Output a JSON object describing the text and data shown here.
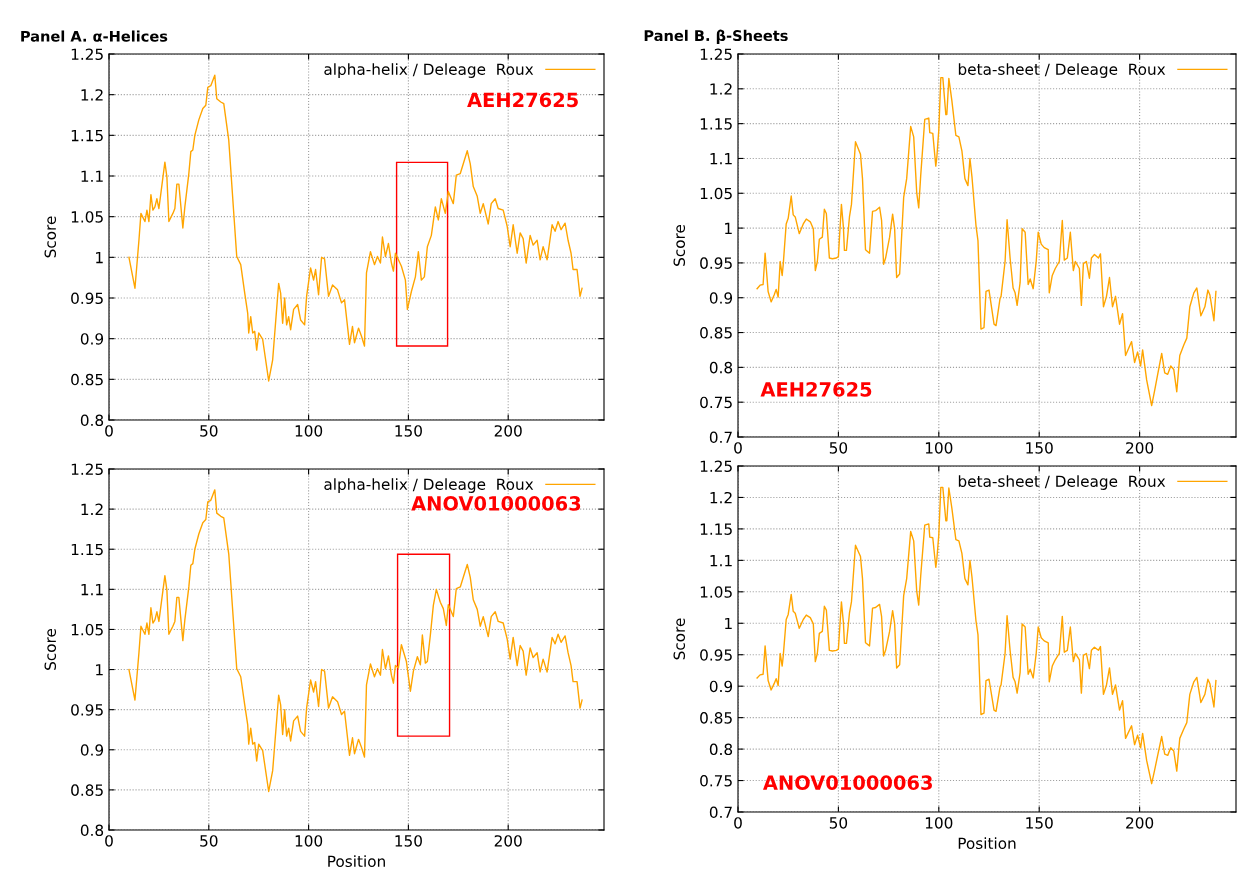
{
  "chart_data": [
    {
      "type": "line",
      "title": "Panel A. α-Helices",
      "ylabel": "Score",
      "xlim": [
        0,
        248
      ],
      "ylim": [
        0.8,
        1.25
      ],
      "xticks": [
        0,
        50,
        100,
        150,
        200
      ],
      "yticks": [
        0.8,
        0.85,
        0.9,
        0.95,
        1,
        1.05,
        1.1,
        1.15,
        1.2,
        1.25
      ],
      "grid": true,
      "legend": "top right",
      "annotations": [
        "AEH27625"
      ],
      "x": [
        10,
        13,
        15,
        16,
        18,
        19,
        20,
        21,
        22,
        23,
        24,
        25,
        26,
        28,
        29,
        30,
        32,
        33,
        34,
        35,
        37,
        38,
        40,
        41,
        42,
        43,
        45,
        47,
        48.5,
        49.5,
        51,
        53,
        54,
        56,
        57.5,
        60,
        64,
        66,
        68,
        69.5,
        70,
        71,
        72,
        73,
        74,
        75,
        77,
        80,
        82,
        85,
        86,
        87,
        88,
        89,
        90,
        91,
        92.5,
        94.5,
        96,
        98,
        99,
        101,
        102.5,
        103.5,
        105,
        106.5,
        108,
        110,
        112,
        114.5,
        116.5,
        118,
        120.5,
        122,
        123,
        125,
        126.5,
        128,
        129,
        131,
        133,
        134.5,
        136,
        137,
        138.5,
        140,
        141.5,
        142.5,
        143.5,
        146.5,
        148.5,
        149.5,
        151.5,
        153.5,
        155,
        156.5,
        158,
        159.5,
        161.5,
        163.5,
        165,
        166.5,
        168.5,
        170,
        172.5,
        174,
        176,
        177.5,
        179.5,
        181,
        182.5,
        184.5,
        186,
        187.5,
        190,
        191.5,
        193.5,
        195,
        197.5,
        199.5,
        201,
        202.5,
        204.5,
        206,
        207.5,
        209,
        211,
        212.5,
        214.5,
        216,
        217.5,
        219.5,
        222,
        223.5,
        225,
        226.5,
        228.5,
        230,
        231.5,
        232.5,
        234.5,
        236,
        237
      ],
      "series": [
        {
          "name": "alpha-helix / Deleage  Roux",
          "color": "#ffa500",
          "values": [
            1.0,
            0.962,
            1.021,
            1.054,
            1.044,
            1.058,
            1.044,
            1.077,
            1.058,
            1.062,
            1.072,
            1.06,
            1.079,
            1.117,
            1.099,
            1.044,
            1.054,
            1.06,
            1.09,
            1.09,
            1.036,
            1.062,
            1.103,
            1.13,
            1.132,
            1.15,
            1.169,
            1.183,
            1.187,
            1.209,
            1.211,
            1.224,
            1.195,
            1.191,
            1.189,
            1.144,
            1.001,
            0.991,
            0.956,
            0.931,
            0.907,
            0.927,
            0.907,
            0.909,
            0.886,
            0.907,
            0.899,
            0.848,
            0.874,
            0.968,
            0.956,
            0.919,
            0.95,
            0.917,
            0.927,
            0.911,
            0.936,
            0.942,
            0.923,
            0.917,
            0.952,
            0.987,
            0.972,
            0.985,
            0.954,
            1.0,
            0.998,
            0.952,
            0.966,
            0.96,
            0.944,
            0.948,
            0.893,
            0.915,
            0.895,
            0.913,
            0.903,
            0.891,
            0.981,
            1.007,
            0.991,
            1.001,
            0.993,
            1.025,
            1.001,
            1.017,
            0.993,
            0.983,
            1.005,
            0.989,
            0.972,
            0.936,
            0.958,
            0.976,
            1.007,
            0.972,
            0.976,
            1.013,
            1.027,
            1.062,
            1.046,
            1.072,
            1.054,
            1.081,
            1.066,
            1.101,
            1.103,
            1.115,
            1.131,
            1.115,
            1.087,
            1.075,
            1.054,
            1.066,
            1.041,
            1.066,
            1.072,
            1.06,
            1.058,
            1.038,
            1.013,
            1.04,
            1.005,
            1.03,
            1.023,
            0.993,
            1.027,
            1.015,
            1.021,
            0.997,
            1.013,
            0.997,
            1.04,
            1.032,
            1.044,
            1.034,
            1.042,
            1.021,
            1.005,
            0.985,
            0.985,
            0.952,
            0.962
          ]
        }
      ]
    },
    {
      "type": "line",
      "xlabel": "Position",
      "ylabel": "Score",
      "xlim": [
        0,
        248
      ],
      "ylim": [
        0.8,
        1.25
      ],
      "xticks": [
        0,
        50,
        100,
        150,
        200
      ],
      "yticks": [
        0.8,
        0.85,
        0.9,
        0.95,
        1,
        1.05,
        1.1,
        1.15,
        1.2,
        1.25
      ],
      "grid": true,
      "legend": "top right",
      "annotations": [
        "ANOV01000063"
      ],
      "x": [
        10,
        13,
        15,
        16,
        18,
        19,
        20,
        21,
        22,
        23,
        24,
        25,
        26,
        28,
        29,
        30,
        32,
        33,
        34,
        35,
        37,
        38,
        40,
        41,
        42,
        43,
        45,
        47,
        48.5,
        49.5,
        51,
        53,
        54,
        56,
        57.5,
        60,
        64,
        66,
        68,
        69.5,
        70,
        71,
        72,
        73,
        74,
        75,
        77,
        80,
        82,
        85,
        86,
        87,
        88,
        89,
        90,
        91,
        92.5,
        94.5,
        96,
        98,
        99,
        101,
        102.5,
        103.5,
        105,
        106.5,
        108,
        110,
        112,
        114.5,
        116.5,
        118,
        120.5,
        122,
        123,
        125,
        126.5,
        128,
        129,
        131,
        133,
        134.5,
        136,
        137,
        138.5,
        140,
        141.5,
        142.5,
        143.5,
        145,
        146.5,
        149,
        151,
        152.5,
        154.5,
        156,
        157,
        158.5,
        159.5,
        161,
        162.5,
        164,
        166,
        167.5,
        169,
        170,
        172.5,
        174,
        176,
        177.5,
        179.5,
        181,
        182.5,
        184.5,
        186,
        187.5,
        190,
        191.5,
        193.5,
        195,
        197.5,
        199.5,
        201,
        202.5,
        204.5,
        206,
        207.5,
        209,
        211,
        212.5,
        214.5,
        216,
        217.5,
        219.5,
        222,
        223.5,
        225,
        226.5,
        228.5,
        230,
        231.5,
        232.5,
        234.5,
        236,
        237
      ],
      "series": [
        {
          "name": "alpha-helix / Deleage  Roux",
          "color": "#ffa500",
          "values": [
            1.0,
            0.962,
            1.021,
            1.054,
            1.044,
            1.058,
            1.044,
            1.077,
            1.058,
            1.062,
            1.072,
            1.06,
            1.079,
            1.117,
            1.099,
            1.044,
            1.054,
            1.06,
            1.09,
            1.09,
            1.036,
            1.062,
            1.103,
            1.13,
            1.132,
            1.15,
            1.169,
            1.183,
            1.187,
            1.209,
            1.211,
            1.224,
            1.195,
            1.191,
            1.189,
            1.144,
            1.001,
            0.991,
            0.956,
            0.931,
            0.907,
            0.927,
            0.907,
            0.909,
            0.886,
            0.907,
            0.899,
            0.848,
            0.874,
            0.968,
            0.956,
            0.919,
            0.95,
            0.917,
            0.927,
            0.911,
            0.936,
            0.942,
            0.923,
            0.917,
            0.952,
            0.987,
            0.972,
            0.985,
            0.954,
            1.0,
            0.998,
            0.952,
            0.966,
            0.96,
            0.944,
            0.948,
            0.893,
            0.915,
            0.895,
            0.913,
            0.903,
            0.891,
            0.981,
            1.007,
            0.991,
            1.001,
            0.993,
            1.025,
            1.001,
            1.017,
            0.993,
            0.983,
            1.005,
            1.002,
            1.031,
            1.01,
            0.973,
            0.998,
            1.016,
            1.006,
            1.043,
            1.008,
            1.01,
            1.043,
            1.08,
            1.1,
            1.084,
            1.076,
            1.055,
            1.081,
            1.066,
            1.101,
            1.103,
            1.115,
            1.131,
            1.115,
            1.087,
            1.075,
            1.054,
            1.066,
            1.041,
            1.066,
            1.072,
            1.06,
            1.058,
            1.038,
            1.013,
            1.04,
            1.005,
            1.03,
            1.023,
            0.993,
            1.027,
            1.015,
            1.021,
            0.997,
            1.013,
            0.997,
            1.04,
            1.032,
            1.044,
            1.034,
            1.042,
            1.021,
            1.005,
            0.985,
            0.985,
            0.952,
            0.962
          ]
        }
      ]
    },
    {
      "type": "line",
      "title": "Panel B. β-Sheets",
      "ylabel": "Score",
      "xlim": [
        0,
        248
      ],
      "ylim": [
        0.7,
        1.25
      ],
      "xticks": [
        0,
        50,
        100,
        150,
        200
      ],
      "yticks": [
        0.7,
        0.75,
        0.8,
        0.85,
        0.9,
        0.95,
        1,
        1.05,
        1.1,
        1.15,
        1.2,
        1.25
      ],
      "grid": true,
      "legend": "top right",
      "annotations": [
        "AEH27625"
      ],
      "x": [
        9.5,
        11,
        12.5,
        13.5,
        15,
        16.5,
        18,
        19,
        20,
        21,
        22,
        22.5,
        24,
        25,
        26.5,
        27.5,
        28.5,
        30.5,
        32.5,
        34,
        36,
        37.5,
        38.5,
        39.5,
        40.5,
        42,
        43,
        44,
        45.5,
        47,
        49,
        50,
        51.5,
        52.5,
        53,
        54,
        55.5,
        56.5,
        58.5,
        61,
        62,
        63.5,
        65.5,
        67,
        68.5,
        70.5,
        71.5,
        72.5,
        73.5,
        75.5,
        77,
        78,
        79,
        80.5,
        82.5,
        84,
        86,
        87.5,
        89,
        90,
        91,
        93,
        95,
        95.5,
        97,
        98.5,
        99,
        100,
        101,
        102,
        103.5,
        104,
        105,
        106.5,
        108.5,
        110,
        111.5,
        113,
        114.5,
        115.5,
        116.5,
        118.5,
        119.5,
        121,
        122.5,
        123.5,
        125,
        127.5,
        128.5,
        130.5,
        131,
        133,
        134,
        135.5,
        137,
        138,
        139,
        140.5,
        141.5,
        143,
        144.5,
        145.5,
        147,
        148.5,
        149.5,
        151,
        152.5,
        154.5,
        155,
        156.5,
        158,
        160,
        161.5,
        162.5,
        164,
        165.5,
        167,
        168,
        170,
        171,
        172,
        173.5,
        175,
        176,
        177.5,
        179.5,
        180.5,
        182,
        183.5,
        185,
        186.5,
        188,
        190,
        191.5,
        193,
        194.5,
        196,
        197.5,
        199,
        200.5,
        201.5,
        203.5,
        206,
        207.5,
        209,
        211,
        212.5,
        214,
        215.5,
        217,
        218.5,
        220,
        222,
        223.5,
        225,
        227,
        228.5,
        230.5,
        232.5,
        234,
        235,
        237,
        238
      ],
      "series": [
        {
          "name": "beta-sheet / Deleage  Roux",
          "color": "#ffa500",
          "values": [
            0.913,
            0.918,
            0.919,
            0.964,
            0.909,
            0.894,
            0.904,
            0.912,
            0.901,
            0.952,
            0.932,
            0.947,
            1.006,
            1.014,
            1.046,
            1.019,
            1.016,
            0.992,
            1.006,
            1.013,
            1.009,
            0.999,
            0.939,
            0.952,
            0.984,
            0.987,
            1.027,
            1.021,
            0.957,
            0.956,
            0.957,
            0.959,
            1.034,
            1.001,
            0.968,
            0.968,
            1.016,
            1.034,
            1.124,
            1.106,
            1.071,
            0.969,
            0.964,
            1.024,
            1.025,
            1.03,
            1.011,
            0.948,
            0.957,
            0.987,
            1.02,
            0.999,
            0.929,
            0.934,
            1.044,
            1.071,
            1.146,
            1.131,
            1.051,
            1.029,
            1.076,
            1.156,
            1.158,
            1.137,
            1.136,
            1.089,
            1.101,
            1.141,
            1.216,
            1.216,
            1.163,
            1.163,
            1.215,
            1.183,
            1.133,
            1.131,
            1.111,
            1.071,
            1.061,
            1.1,
            1.074,
            1.004,
            0.982,
            0.855,
            0.857,
            0.909,
            0.911,
            0.862,
            0.86,
            0.899,
            0.902,
            0.952,
            1.012,
            0.957,
            0.914,
            0.907,
            0.889,
            0.922,
            0.999,
            0.994,
            0.919,
            0.927,
            0.913,
            0.952,
            0.994,
            0.977,
            0.972,
            0.969,
            0.907,
            0.932,
            0.942,
            0.952,
            1.011,
            0.954,
            0.957,
            0.994,
            0.939,
            0.952,
            0.942,
            0.889,
            0.949,
            0.952,
            0.928,
            0.957,
            0.962,
            0.957,
            0.963,
            0.887,
            0.902,
            0.929,
            0.887,
            0.902,
            0.862,
            0.877,
            0.817,
            0.827,
            0.837,
            0.807,
            0.822,
            0.802,
            0.825,
            0.782,
            0.745,
            0.767,
            0.79,
            0.82,
            0.792,
            0.79,
            0.802,
            0.797,
            0.765,
            0.817,
            0.832,
            0.842,
            0.887,
            0.907,
            0.914,
            0.874,
            0.887,
            0.911,
            0.904,
            0.867,
            0.909
          ]
        }
      ]
    },
    {
      "type": "line",
      "xlabel": "Position",
      "ylabel": "Score",
      "xlim": [
        0,
        248
      ],
      "ylim": [
        0.7,
        1.25
      ],
      "xticks": [
        0,
        50,
        100,
        150,
        200
      ],
      "yticks": [
        0.7,
        0.75,
        0.8,
        0.85,
        0.9,
        0.95,
        1,
        1.05,
        1.1,
        1.15,
        1.2,
        1.25
      ],
      "grid": true,
      "legend": "top right",
      "annotations": [
        "ANOV01000063"
      ],
      "x": [
        9.5,
        11,
        12.5,
        13.5,
        15,
        16.5,
        18,
        19,
        20,
        21,
        22,
        22.5,
        24,
        25,
        26.5,
        27.5,
        28.5,
        30.5,
        32.5,
        34,
        36,
        37.5,
        38.5,
        39.5,
        40.5,
        42,
        43,
        44,
        45.5,
        47,
        49,
        50,
        51.5,
        52.5,
        53,
        54,
        55.5,
        56.5,
        58.5,
        61,
        62,
        63.5,
        65.5,
        67,
        68.5,
        70.5,
        71.5,
        72.5,
        73.5,
        75.5,
        77,
        78,
        79,
        80.5,
        82.5,
        84,
        86,
        87.5,
        89,
        90,
        91,
        93,
        95,
        95.5,
        97,
        98.5,
        99,
        100,
        101,
        102,
        103.5,
        104,
        105,
        106.5,
        108.5,
        110,
        111.5,
        113,
        114.5,
        115.5,
        116.5,
        118.5,
        119.5,
        121,
        122.5,
        123.5,
        125,
        127.5,
        128.5,
        130.5,
        131,
        133,
        134,
        135.5,
        137,
        138,
        139,
        140.5,
        141.5,
        143,
        144.5,
        145.5,
        147,
        148.5,
        149.5,
        151,
        152.5,
        154.5,
        155,
        156.5,
        158,
        160,
        161.5,
        162.5,
        164,
        165.5,
        167,
        168,
        170,
        171,
        172,
        173.5,
        175,
        176,
        177.5,
        179.5,
        180.5,
        182,
        183.5,
        185,
        186.5,
        188,
        190,
        191.5,
        193,
        194.5,
        196,
        197.5,
        199,
        200.5,
        201.5,
        203.5,
        206,
        207.5,
        209,
        211,
        212.5,
        214,
        215.5,
        217,
        218.5,
        220,
        222,
        223.5,
        225,
        227,
        228.5,
        230.5,
        232.5,
        234,
        235,
        237,
        238
      ],
      "series": [
        {
          "name": "beta-sheet / Deleage  Roux",
          "color": "#ffa500",
          "values": [
            0.913,
            0.918,
            0.919,
            0.964,
            0.909,
            0.894,
            0.904,
            0.912,
            0.901,
            0.952,
            0.932,
            0.947,
            1.006,
            1.014,
            1.046,
            1.019,
            1.016,
            0.992,
            1.006,
            1.013,
            1.009,
            0.999,
            0.939,
            0.952,
            0.984,
            0.987,
            1.027,
            1.021,
            0.957,
            0.956,
            0.957,
            0.959,
            1.034,
            1.001,
            0.968,
            0.968,
            1.016,
            1.034,
            1.124,
            1.106,
            1.071,
            0.969,
            0.964,
            1.024,
            1.025,
            1.03,
            1.011,
            0.948,
            0.957,
            0.987,
            1.02,
            0.999,
            0.929,
            0.934,
            1.044,
            1.071,
            1.146,
            1.131,
            1.051,
            1.029,
            1.076,
            1.156,
            1.158,
            1.137,
            1.136,
            1.089,
            1.101,
            1.141,
            1.216,
            1.216,
            1.163,
            1.163,
            1.215,
            1.183,
            1.133,
            1.131,
            1.111,
            1.071,
            1.061,
            1.1,
            1.074,
            1.004,
            0.982,
            0.855,
            0.857,
            0.909,
            0.911,
            0.862,
            0.86,
            0.899,
            0.902,
            0.952,
            1.012,
            0.957,
            0.914,
            0.907,
            0.889,
            0.922,
            0.999,
            0.994,
            0.919,
            0.927,
            0.913,
            0.952,
            0.994,
            0.977,
            0.972,
            0.969,
            0.907,
            0.932,
            0.942,
            0.952,
            1.011,
            0.954,
            0.957,
            0.994,
            0.939,
            0.952,
            0.942,
            0.889,
            0.949,
            0.952,
            0.928,
            0.957,
            0.962,
            0.957,
            0.963,
            0.887,
            0.902,
            0.929,
            0.887,
            0.902,
            0.862,
            0.877,
            0.817,
            0.827,
            0.837,
            0.807,
            0.822,
            0.802,
            0.825,
            0.782,
            0.745,
            0.767,
            0.79,
            0.82,
            0.792,
            0.79,
            0.802,
            0.797,
            0.765,
            0.817,
            0.832,
            0.842,
            0.887,
            0.907,
            0.914,
            0.874,
            0.887,
            0.911,
            0.904,
            0.867,
            0.909
          ]
        }
      ]
    }
  ]
}
